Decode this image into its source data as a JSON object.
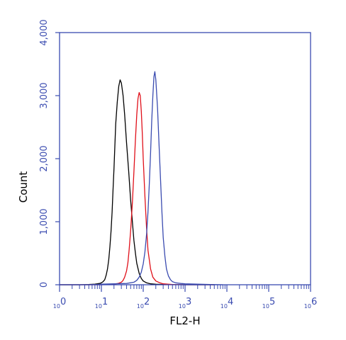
{
  "chart_data": {
    "type": "line",
    "title": "",
    "xlabel": "FL2-H",
    "ylabel": "Count",
    "x_scale": "log",
    "xlim": [
      1,
      1000000
    ],
    "ylim": [
      0,
      4000
    ],
    "x_ticks": [
      {
        "base": "10",
        "exp": "0"
      },
      {
        "base": "10",
        "exp": "1"
      },
      {
        "base": "10",
        "exp": "2"
      },
      {
        "base": "10",
        "exp": "3"
      },
      {
        "base": "10",
        "exp": "4"
      },
      {
        "base": "10",
        "exp": "5"
      },
      {
        "base": "10",
        "exp": "6"
      }
    ],
    "y_ticks": [
      {
        "value": 0,
        "label": "0"
      },
      {
        "value": 1000,
        "label": "1,000"
      },
      {
        "value": 2000,
        "label": "2,000"
      },
      {
        "value": 3000,
        "label": "3,000"
      },
      {
        "value": 4000,
        "label": "4,000"
      }
    ],
    "grid": false,
    "legend": "none",
    "series": [
      {
        "color": "#000000",
        "x": [
          1,
          3,
          5,
          7,
          8,
          9,
          10,
          11,
          12,
          13,
          14,
          15,
          16,
          17,
          18,
          19,
          20,
          21,
          22,
          24,
          26,
          28,
          30,
          33,
          36,
          40,
          45,
          50,
          55,
          60,
          65,
          70,
          80,
          90,
          100,
          120,
          150,
          200,
          300,
          500,
          1000,
          5000
        ],
        "y": [
          0,
          0,
          5,
          10,
          15,
          20,
          30,
          50,
          80,
          150,
          250,
          400,
          600,
          850,
          1150,
          1500,
          1850,
          2200,
          2550,
          2900,
          3150,
          3250,
          3200,
          3000,
          2700,
          2250,
          1800,
          1350,
          1000,
          700,
          500,
          340,
          180,
          100,
          60,
          30,
          15,
          8,
          5,
          3,
          0,
          0
        ]
      },
      {
        "color": "#e0101a",
        "x": [
          1,
          10,
          15,
          20,
          25,
          30,
          33,
          36,
          40,
          43,
          46,
          50,
          55,
          60,
          65,
          70,
          75,
          80,
          85,
          90,
          95,
          100,
          110,
          120,
          130,
          150,
          170,
          200,
          250,
          300,
          500,
          1000,
          5000
        ],
        "y": [
          0,
          0,
          5,
          10,
          20,
          40,
          70,
          120,
          220,
          350,
          550,
          850,
          1300,
          1800,
          2300,
          2700,
          2950,
          3050,
          3000,
          2750,
          2400,
          2000,
          1400,
          900,
          550,
          250,
          120,
          60,
          30,
          15,
          5,
          0,
          0
        ]
      },
      {
        "color": "#3a4bb0",
        "x": [
          1,
          3,
          5,
          8,
          10,
          20,
          40,
          60,
          70,
          80,
          90,
          100,
          110,
          120,
          130,
          140,
          150,
          160,
          170,
          180,
          190,
          200,
          220,
          240,
          260,
          280,
          300,
          330,
          360,
          400,
          450,
          500,
          600,
          800,
          1000,
          2000,
          4000,
          8000
        ],
        "y": [
          0,
          0,
          0,
          5,
          10,
          15,
          20,
          40,
          70,
          120,
          200,
          330,
          520,
          800,
          1150,
          1600,
          2100,
          2600,
          3000,
          3300,
          3380,
          3250,
          2800,
          2200,
          1650,
          1150,
          750,
          450,
          250,
          140,
          80,
          50,
          30,
          20,
          15,
          10,
          5,
          0
        ]
      }
    ]
  }
}
